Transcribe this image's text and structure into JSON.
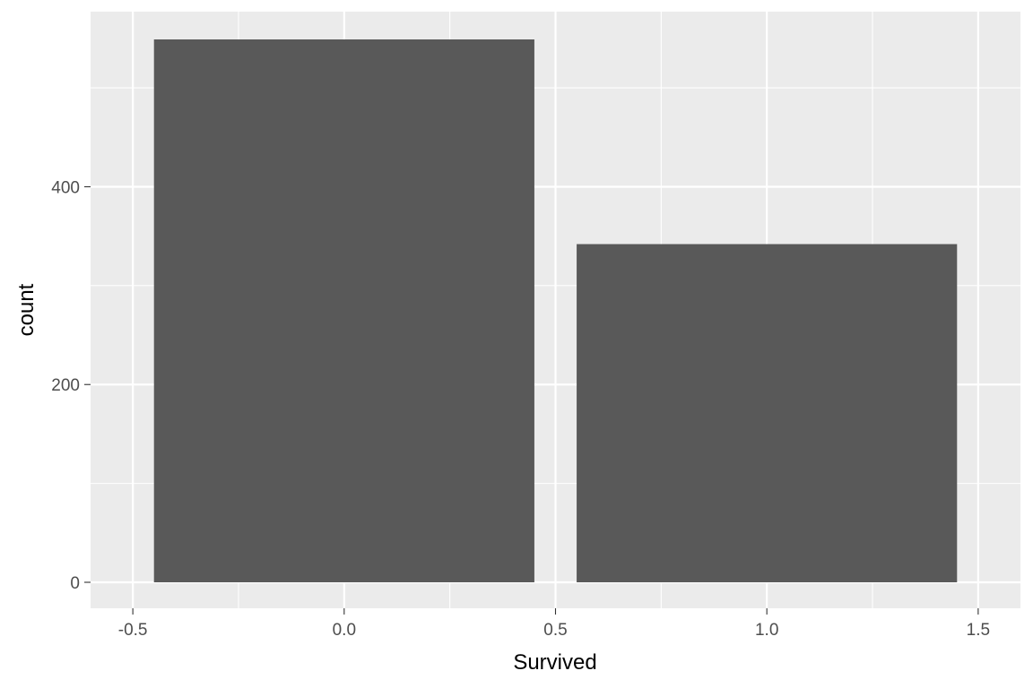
{
  "chart_data": {
    "type": "bar",
    "title": "",
    "xlabel": "Survived",
    "ylabel": "count",
    "x": [
      0,
      1
    ],
    "values": [
      549,
      342
    ],
    "bar_width": 0.9,
    "xlim": [
      -0.5,
      1.5
    ],
    "ylim": [
      0,
      549
    ],
    "x_ticks": [
      -0.5,
      0.0,
      0.5,
      1.0,
      1.5
    ],
    "x_tick_labels": [
      "-0.5",
      "0.0",
      "0.5",
      "1.0",
      "1.5"
    ],
    "y_ticks": [
      0,
      200,
      400
    ],
    "y_tick_labels": [
      "0",
      "200",
      "400"
    ],
    "grid": true,
    "legend": "none",
    "colors": {
      "panel": "#ebebeb",
      "grid": "#ffffff",
      "bar": "#595959",
      "tick_text": "#4d4d4d",
      "tick_mark": "#333333"
    }
  }
}
